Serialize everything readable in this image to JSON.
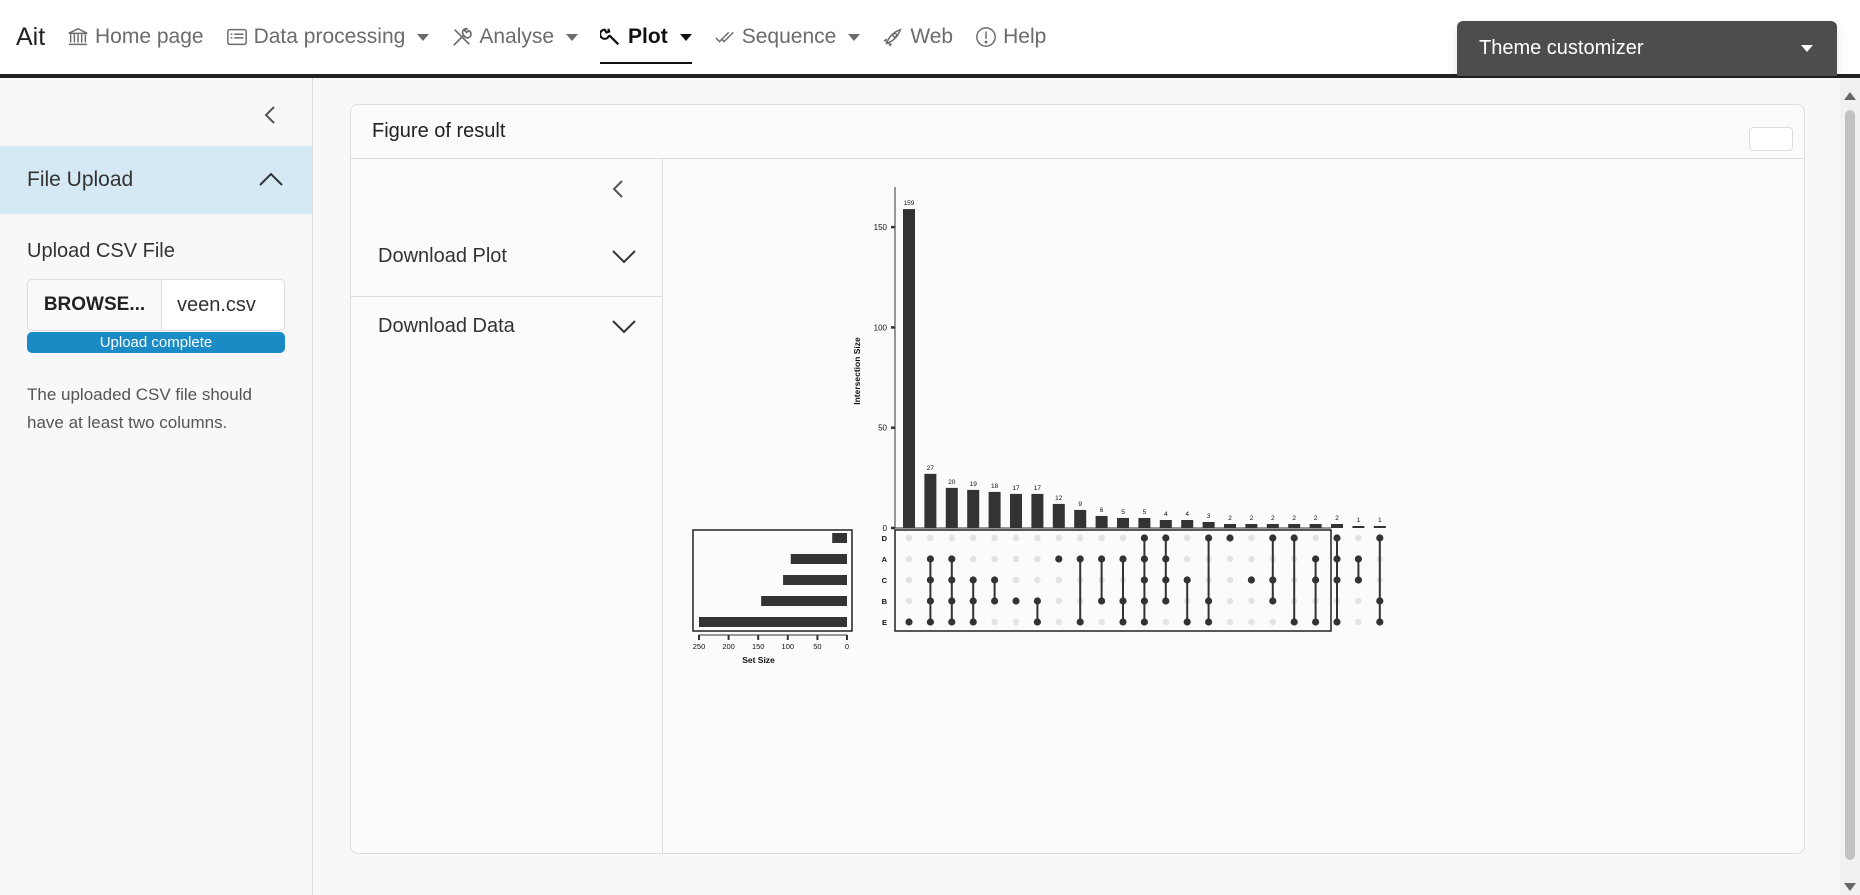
{
  "app": {
    "brand": "Ait",
    "nav": [
      {
        "label": "Home page",
        "icon": "bank-icon"
      },
      {
        "label": "Data processing",
        "icon": "list-card-icon"
      },
      {
        "label": "Analyse",
        "icon": "tools-icon"
      },
      {
        "label": "Plot",
        "icon": "wrench-icon"
      },
      {
        "label": "Sequence",
        "icon": "check-double-icon"
      },
      {
        "label": "Web",
        "icon": "rocket-icon"
      },
      {
        "label": "Help",
        "icon": "exclamation-circle-icon"
      }
    ],
    "theme_customizer": "Theme customizer",
    "colors": {
      "accent": "#1a8bc5",
      "accordion_bg": "#d5e9f4",
      "theme_bg": "#4d4d4d",
      "bar": "#333333"
    }
  },
  "sidebar": {
    "accordion_title": "File Upload",
    "upload_label": "Upload CSV File",
    "browse_label": "BROWSE...",
    "file_name": "veen.csv",
    "progress_text": "Upload complete",
    "help_text": "The uploaded CSV file should have at least two columns."
  },
  "card": {
    "title": "Figure of result",
    "download_plot": "Download Plot",
    "download_data": "Download Data"
  },
  "chart_data": {
    "type": "bar",
    "ylabel": "Intersection Size",
    "xlabel_sets": "Set Size",
    "ylim": [
      0,
      170
    ],
    "yticks": [
      0,
      50,
      100,
      150
    ],
    "values": [
      159,
      27,
      20,
      19,
      18,
      17,
      17,
      12,
      9,
      6,
      5,
      5,
      4,
      4,
      3,
      2,
      2,
      2,
      2,
      2,
      2,
      1,
      1
    ],
    "sets": [
      "D",
      "A",
      "C",
      "B",
      "E"
    ],
    "set_sizes": [
      25,
      95,
      108,
      145,
      250
    ],
    "set_xlim": [
      0,
      250
    ],
    "set_ticks": [
      250,
      200,
      150,
      100,
      50,
      0
    ],
    "intersections": [
      [
        "E"
      ],
      [
        "A",
        "C",
        "B",
        "E"
      ],
      [
        "A",
        "C",
        "B",
        "E"
      ],
      [
        "C",
        "B",
        "E"
      ],
      [
        "C",
        "B"
      ],
      [
        "B"
      ],
      [
        "B",
        "E"
      ],
      [
        "A"
      ],
      [
        "A",
        "E"
      ],
      [
        "A",
        "B"
      ],
      [
        "A",
        "B",
        "E"
      ],
      [
        "D",
        "A",
        "C",
        "B",
        "E"
      ],
      [
        "D",
        "A",
        "C",
        "B"
      ],
      [
        "C",
        "E"
      ],
      [
        "D",
        "B",
        "E"
      ],
      [
        "D"
      ],
      [
        "C"
      ],
      [
        "D",
        "C",
        "B"
      ],
      [
        "D",
        "E"
      ],
      [
        "A",
        "C",
        "E"
      ],
      [
        "D",
        "A",
        "C",
        "E"
      ],
      [
        "A",
        "C"
      ],
      [
        "D",
        "B",
        "E"
      ]
    ]
  }
}
